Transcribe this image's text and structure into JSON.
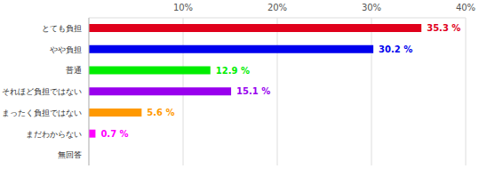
{
  "chart_data": {
    "type": "bar",
    "orientation": "horizontal",
    "categories": [
      "とても負担",
      "やや負担",
      "普通",
      "それほど負担ではない",
      "まったく負担ではない",
      "まだわからない",
      "無回答"
    ],
    "values": [
      35.3,
      30.2,
      12.9,
      15.1,
      5.6,
      0.7,
      null
    ],
    "value_labels": [
      "35.3 %",
      "30.2 %",
      "12.9 %",
      "15.1 %",
      "5.6 %",
      "0.7 %",
      null
    ],
    "colors": [
      "#e0001b",
      "#0000ee",
      "#00ee00",
      "#9900ee",
      "#ff9900",
      "#ff00ff",
      "#cccccc"
    ],
    "xlim": [
      0,
      40
    ],
    "xticks": [
      {
        "value": 10,
        "label": "10%"
      },
      {
        "value": 20,
        "label": "20%"
      },
      {
        "value": 30,
        "label": "30%"
      },
      {
        "value": 40,
        "label": "40%"
      }
    ],
    "grid": true,
    "data_labels": true
  }
}
